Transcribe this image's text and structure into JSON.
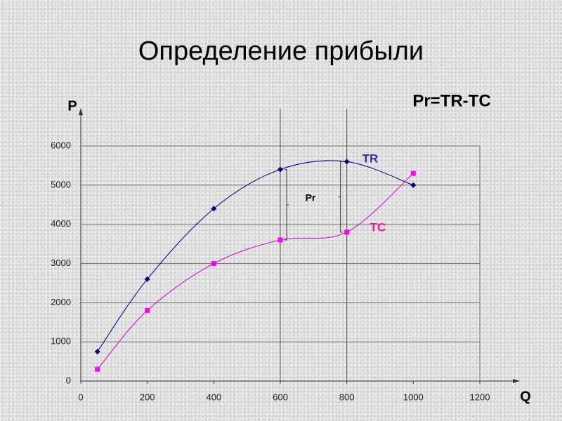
{
  "chart_data": {
    "type": "line",
    "title": "Определение прибыли",
    "subtitle": "Pr=TR-TC",
    "y_label": "P",
    "x_label": "Q",
    "annotation": "Pr",
    "x": [
      50,
      200,
      400,
      600,
      800,
      1000
    ],
    "series": [
      {
        "name": "TR",
        "color": "#000080",
        "label_color": "#333399",
        "marker": "diamond",
        "marker_color": "#000080",
        "values": [
          750,
          2600,
          4400,
          5400,
          5600,
          5000
        ]
      },
      {
        "name": "TC",
        "color": "#cc00cc",
        "label_color": "#e0208f",
        "marker": "square",
        "marker_color": "#ff00ff",
        "values": [
          300,
          1800,
          3000,
          3600,
          3800,
          5300
        ]
      }
    ],
    "xlim": [
      0,
      1200
    ],
    "xticks": [
      0,
      200,
      400,
      600,
      800,
      1000,
      1200
    ],
    "ylim": [
      0,
      6000
    ],
    "yticks": [
      0,
      1000,
      2000,
      3000,
      4000,
      5000,
      6000
    ],
    "grid": true,
    "vlines": [
      600,
      800
    ]
  }
}
